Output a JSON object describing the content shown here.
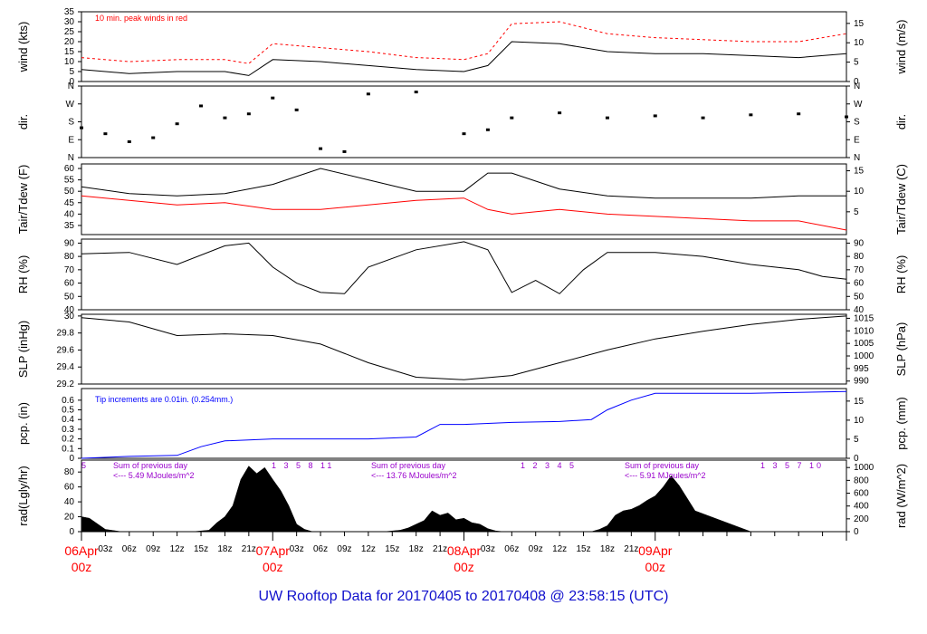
{
  "page": {
    "title": "UW Rooftop Data for 20170405  to  20170408 @ 23:58:15  (UTC)"
  },
  "colors": {
    "axis": "#000000",
    "red_series": "#ff0000",
    "blue_series": "#0000ff",
    "annotation_purple": "#9900cc",
    "date_labels": "#ff0000",
    "title": "#1010cc"
  },
  "chart_data": [
    {
      "type": "line",
      "id": "wind",
      "ylabel": "wind (kts)",
      "ylabel_right": "wind (m/s)",
      "annotation": "10 min. peak winds in red",
      "yticks": [
        0,
        5,
        10,
        15,
        20,
        25,
        30,
        35
      ],
      "yticks_right": [
        0,
        5,
        10,
        15
      ],
      "ylim": [
        0,
        35
      ],
      "x": [
        0,
        6,
        12,
        18,
        21,
        24,
        30,
        36,
        42,
        48,
        51,
        54,
        60,
        66,
        72,
        78,
        84,
        90,
        96
      ],
      "series": [
        {
          "values": [
            6,
            4,
            5,
            5,
            3,
            11,
            10,
            8,
            6,
            5,
            8,
            20,
            19,
            15,
            14,
            14,
            13,
            12,
            14
          ]
        },
        {
          "values": [
            12,
            10,
            11,
            11,
            9,
            19,
            17,
            15,
            12,
            11,
            14,
            29,
            30,
            24,
            22,
            21,
            20,
            20,
            24
          ]
        }
      ]
    },
    {
      "type": "scatter",
      "id": "dir",
      "ylabel": "dir.",
      "ylabel_right": "dir.",
      "yticks": [
        "N",
        "E",
        "S",
        "W",
        "N"
      ],
      "x": [
        0,
        3,
        6,
        9,
        12,
        15,
        18,
        21,
        24,
        27,
        30,
        33,
        36,
        42,
        48,
        51,
        54,
        60,
        66,
        72,
        78,
        84,
        90,
        96
      ],
      "values": [
        150,
        120,
        80,
        100,
        170,
        260,
        200,
        220,
        300,
        240,
        45,
        30,
        320,
        330,
        120,
        140,
        200,
        225,
        200,
        210,
        200,
        215,
        220,
        205
      ]
    },
    {
      "type": "line",
      "id": "temp",
      "ylabel": "Tair/Tdew (F)",
      "ylabel_right": "Tair/Tdew (C)",
      "yticks": [
        35,
        40,
        45,
        50,
        55,
        60
      ],
      "yticks_right": [
        5,
        10,
        15
      ],
      "ylim": [
        31,
        62
      ],
      "x": [
        0,
        6,
        12,
        18,
        24,
        30,
        36,
        42,
        48,
        51,
        54,
        60,
        66,
        72,
        78,
        84,
        90,
        96
      ],
      "series": [
        {
          "values": [
            52,
            49,
            48,
            49,
            53,
            60,
            55,
            50,
            50,
            58,
            58,
            51,
            48,
            47,
            47,
            47,
            48,
            48
          ]
        },
        {
          "values": [
            48,
            46,
            44,
            45,
            42,
            42,
            44,
            46,
            47,
            42,
            40,
            42,
            40,
            39,
            38,
            37,
            37,
            33
          ]
        }
      ]
    },
    {
      "type": "line",
      "id": "rh",
      "ylabel": "RH (%)",
      "ylabel_right": "RH (%)",
      "yticks": [
        40,
        50,
        60,
        70,
        80,
        90
      ],
      "ylim": [
        40,
        93
      ],
      "x": [
        0,
        6,
        12,
        18,
        21,
        24,
        27,
        30,
        33,
        36,
        42,
        48,
        51,
        54,
        57,
        60,
        63,
        66,
        72,
        78,
        84,
        90,
        93,
        96
      ],
      "values": [
        82,
        83,
        74,
        88,
        90,
        72,
        60,
        53,
        52,
        72,
        85,
        91,
        85,
        53,
        62,
        52,
        70,
        83,
        83,
        80,
        74,
        70,
        65,
        63
      ]
    },
    {
      "type": "line",
      "id": "slp",
      "ylabel": "SLP (inHg)",
      "ylabel_right": "SLP (hPa)",
      "yticks": [
        29.2,
        29.4,
        29.6,
        29.8,
        30.0
      ],
      "yticks_right": [
        990,
        995,
        1000,
        1005,
        1010,
        1015
      ],
      "ylim": [
        29.2,
        30.02
      ],
      "x": [
        0,
        6,
        12,
        18,
        24,
        30,
        36,
        42,
        48,
        54,
        60,
        66,
        72,
        78,
        84,
        90,
        96
      ],
      "values": [
        29.98,
        29.93,
        29.77,
        29.79,
        29.77,
        29.67,
        29.45,
        29.28,
        29.25,
        29.3,
        29.45,
        29.6,
        29.73,
        29.82,
        29.9,
        29.96,
        30.0
      ]
    },
    {
      "type": "line",
      "id": "pcp",
      "ylabel": "pcp. (in)",
      "ylabel_right": "pcp. (mm)",
      "annotation": "Tip increments are 0.01in. (0.254mm.)",
      "yticks": [
        0,
        0.1,
        0.2,
        0.3,
        0.4,
        0.5,
        0.6
      ],
      "yticks_right": [
        0,
        5,
        10,
        15
      ],
      "ylim": [
        0,
        0.72
      ],
      "x": [
        0,
        6,
        12,
        15,
        18,
        24,
        30,
        36,
        42,
        45,
        48,
        54,
        60,
        64,
        66,
        69,
        72,
        78,
        84,
        90,
        96
      ],
      "values": [
        0.0,
        0.02,
        0.03,
        0.12,
        0.18,
        0.2,
        0.2,
        0.2,
        0.22,
        0.35,
        0.35,
        0.37,
        0.38,
        0.4,
        0.5,
        0.6,
        0.67,
        0.67,
        0.67,
        0.68,
        0.69
      ]
    },
    {
      "type": "area",
      "id": "rad",
      "ylabel": "rad(Lgly/hr)",
      "ylabel_right": "rad (W/m^2)",
      "yticks": [
        0,
        20,
        40,
        60,
        80
      ],
      "yticks_right": [
        0,
        200,
        400,
        600,
        800,
        1000
      ],
      "ylim": [
        0,
        96
      ],
      "x": [
        0,
        1,
        3,
        5,
        6,
        12,
        14,
        16,
        17,
        18,
        19,
        20,
        21,
        22,
        23,
        24,
        25,
        26,
        27,
        28,
        29,
        36,
        38,
        40,
        41,
        42,
        43,
        44,
        45,
        46,
        47,
        48,
        49,
        50,
        51,
        52,
        53,
        60,
        62,
        64,
        65,
        66,
        67,
        68,
        69,
        70,
        71,
        72,
        73,
        74,
        75,
        76,
        77,
        84,
        86,
        88,
        89,
        90,
        91,
        92,
        93,
        94,
        95,
        96
      ],
      "values": [
        20,
        18,
        3,
        0,
        0,
        0,
        0,
        2,
        12,
        20,
        35,
        70,
        88,
        78,
        86,
        70,
        55,
        35,
        10,
        3,
        0,
        0,
        0,
        2,
        5,
        10,
        15,
        28,
        22,
        25,
        16,
        18,
        12,
        10,
        4,
        1,
        0,
        0,
        0,
        0,
        3,
        8,
        22,
        28,
        30,
        35,
        42,
        48,
        60,
        75,
        62,
        45,
        28,
        0,
        0,
        0,
        0,
        0,
        0,
        0,
        0,
        0,
        0,
        0
      ],
      "event_markers": "5  1 3 5 8 11  1 2 3 4 5  1 3 5 7 10",
      "day_sums": [
        {
          "line1": "Sum of previous day",
          "line2": "<--- 5.49 MJoules/m^2"
        },
        {
          "line1": "Sum of previous day",
          "line2": "<--- 13.76 MJoules/m^2"
        },
        {
          "line1": "Sum of previous day",
          "line2": "<--- 5.91 MJoules/m^2"
        }
      ]
    }
  ],
  "x_axis": {
    "hour_ticks": [
      "03z",
      "06z",
      "09z",
      "12z",
      "15z",
      "18z",
      "21z",
      "03z",
      "06z",
      "09z",
      "12z",
      "15z",
      "18z",
      "21z",
      "03z",
      "06z",
      "09z",
      "12z",
      "15z",
      "18z",
      "21z"
    ],
    "day_labels": [
      {
        "date": "06Apr",
        "time": "00z"
      },
      {
        "date": "07Apr",
        "time": "00z"
      },
      {
        "date": "08Apr",
        "time": "00z"
      },
      {
        "date": "09Apr",
        "time": "00z"
      }
    ]
  }
}
